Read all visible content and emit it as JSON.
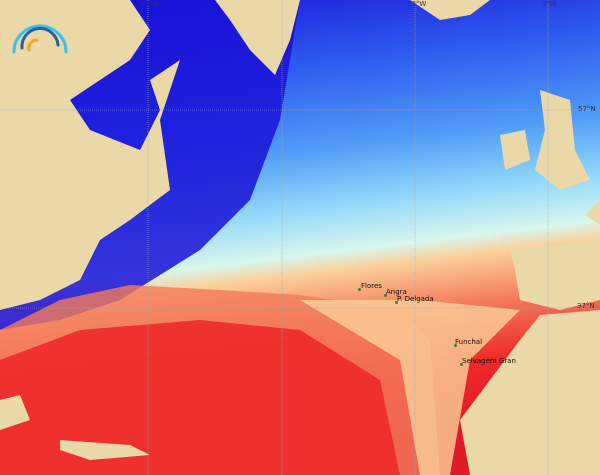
{
  "map": {
    "type": "sea surface temperature",
    "colors": {
      "land": "#ead8a8",
      "coldest": "#1a10d8",
      "cold": "#2f5ff0",
      "cool": "#4f9af7",
      "mild": "#8fd6fb",
      "neutral": "#d8f6ec",
      "warm": "#fbcf9a",
      "hot": "#f47a5a",
      "hottest": "#ee2a2a"
    },
    "grid_labels": {
      "lon": [
        "63°W",
        "23°W",
        "3°W"
      ],
      "lat": [
        "57°N",
        "37°N"
      ]
    },
    "places": [
      {
        "name": "Flores"
      },
      {
        "name": "Angra"
      },
      {
        "name": "P. Delgada"
      },
      {
        "name": "Funchal"
      },
      {
        "name": "Selvagem Gran"
      }
    ],
    "logo_icon": "rainbow-arc-logo"
  }
}
